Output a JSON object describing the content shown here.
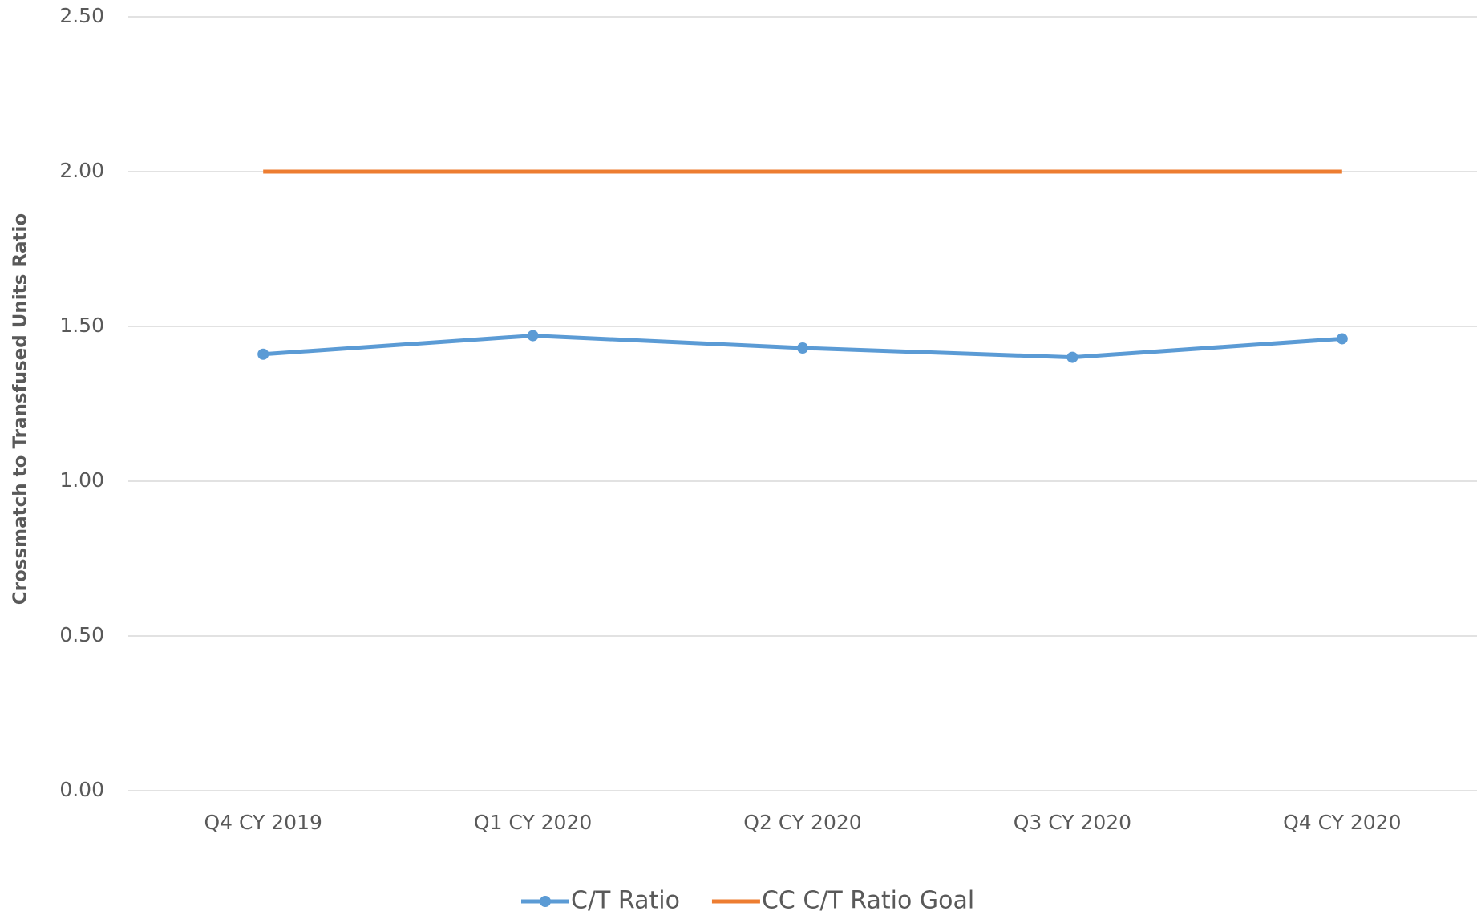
{
  "chart_data": {
    "type": "line",
    "y_label": "Crossmatch to Transfused Units Ratio",
    "categories": [
      "Q4 CY 2019",
      "Q1 CY 2020",
      "Q2 CY 2020",
      "Q3 CY 2020",
      "Q4 CY 2020"
    ],
    "series": [
      {
        "name": "C/T Ratio",
        "color": "#5b9bd5",
        "marker": true,
        "values": [
          1.41,
          1.47,
          1.43,
          1.4,
          1.46
        ]
      },
      {
        "name": "CC C/T Ratio Goal",
        "color": "#ed7d31",
        "marker": false,
        "values": [
          2.0,
          2.0,
          2.0,
          2.0,
          2.0
        ]
      }
    ],
    "ylim": [
      0,
      2.5
    ],
    "yticks": [
      {
        "value": 0,
        "label": "0.00"
      },
      {
        "value": 0.5,
        "label": "0.50"
      },
      {
        "value": 1,
        "label": "1.00"
      },
      {
        "value": 1.5,
        "label": "1.50"
      },
      {
        "value": 2,
        "label": "2.00"
      },
      {
        "value": 2.5,
        "label": "2.50"
      }
    ],
    "grid": true,
    "legend": "bottom"
  }
}
